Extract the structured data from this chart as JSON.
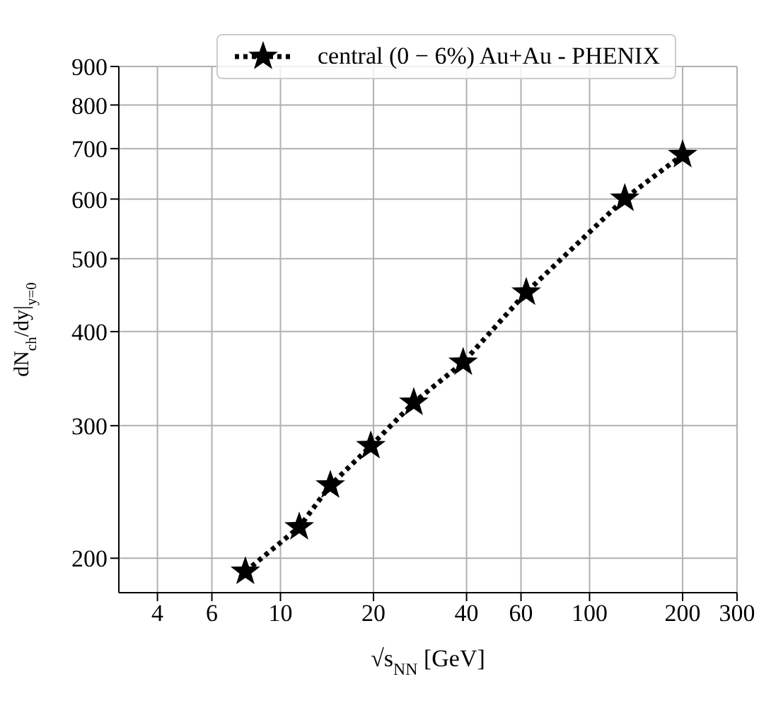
{
  "chart_data": {
    "type": "line",
    "xlabel": "√s$_{NN}$ [GeV]",
    "ylabel": "dN$_{ch}$/dy|$_{y=0}$",
    "x": [
      7.7,
      11.5,
      14.5,
      19.6,
      27,
      39,
      62.4,
      130,
      200
    ],
    "series": [
      {
        "name": "central (0 − 6%) Au+Au - PHENIX",
        "color": "#000000",
        "values": [
          192,
          220,
          250,
          282,
          322,
          364,
          451,
          601,
          687
        ]
      }
    ],
    "xlim": [
      3,
      300
    ],
    "xticks": [
      4,
      6,
      10,
      20,
      40,
      60,
      100,
      200,
      300
    ],
    "ylim": [
      180,
      900
    ],
    "yticks": [
      200,
      300,
      400,
      500,
      600,
      700,
      800,
      900
    ],
    "log": "xy",
    "grid": true,
    "legend": "top",
    "marker": "star",
    "line_style": "dotted"
  }
}
